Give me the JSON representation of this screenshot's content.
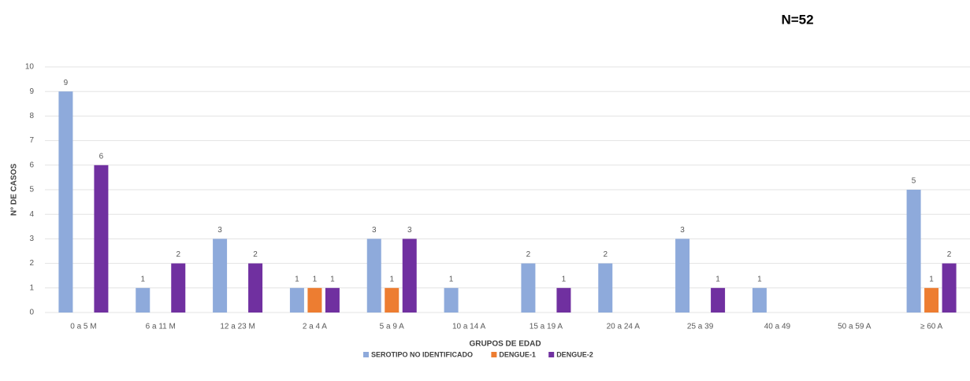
{
  "chart_data": {
    "type": "bar",
    "annotation": "N=52",
    "xlabel": "GRUPOS DE EDAD",
    "ylabel": "N° DE CASOS",
    "categories": [
      "0 a 5 M",
      "6 a 11 M",
      "12 a 23 M",
      "2 a 4 A",
      "5 a 9 A",
      "10 a 14 A",
      "15 a 19 A",
      "20 a 24 A",
      "25 a 39",
      "40 a 49",
      "50 a 59 A",
      "≥ 60 A"
    ],
    "series": [
      {
        "name": "SEROTIPO NO IDENTIFICADO",
        "color": "#8eaadb",
        "values": [
          9,
          1,
          3,
          1,
          3,
          1,
          2,
          2,
          3,
          1,
          null,
          5
        ]
      },
      {
        "name": "DENGUE-1",
        "color": "#ed7d31",
        "values": [
          null,
          null,
          null,
          1,
          1,
          null,
          null,
          null,
          null,
          null,
          null,
          1
        ]
      },
      {
        "name": "DENGUE-2",
        "color": "#7030a0",
        "values": [
          6,
          2,
          2,
          1,
          3,
          null,
          1,
          null,
          1,
          null,
          null,
          2
        ]
      }
    ],
    "ylim": [
      0,
      10
    ],
    "yticks": [
      0,
      1,
      2,
      3,
      4,
      5,
      6,
      7,
      8,
      9,
      10
    ],
    "grid": true
  }
}
